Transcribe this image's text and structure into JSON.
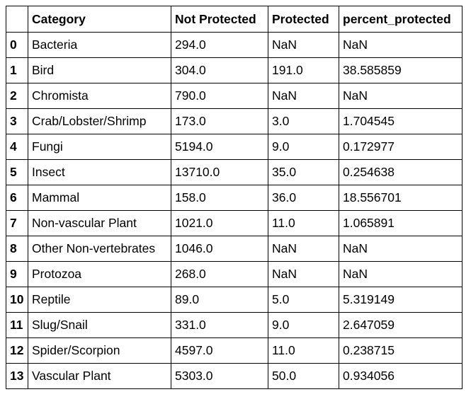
{
  "table": {
    "columns": [
      "",
      "Category",
      "Not Protected",
      "Protected",
      "percent_protected"
    ],
    "rows": [
      {
        "index": "0",
        "category": "Bacteria",
        "not_protected": "294.0",
        "protected": "NaN",
        "percent_protected": "NaN"
      },
      {
        "index": "1",
        "category": "Bird",
        "not_protected": "304.0",
        "protected": "191.0",
        "percent_protected": "38.585859"
      },
      {
        "index": "2",
        "category": "Chromista",
        "not_protected": "790.0",
        "protected": "NaN",
        "percent_protected": "NaN"
      },
      {
        "index": "3",
        "category": "Crab/Lobster/Shrimp",
        "not_protected": "173.0",
        "protected": "3.0",
        "percent_protected": "1.704545"
      },
      {
        "index": "4",
        "category": "Fungi",
        "not_protected": "5194.0",
        "protected": "9.0",
        "percent_protected": "0.172977"
      },
      {
        "index": "5",
        "category": "Insect",
        "not_protected": "13710.0",
        "protected": "35.0",
        "percent_protected": "0.254638"
      },
      {
        "index": "6",
        "category": "Mammal",
        "not_protected": "158.0",
        "protected": "36.0",
        "percent_protected": "18.556701"
      },
      {
        "index": "7",
        "category": "Non-vascular Plant",
        "not_protected": "1021.0",
        "protected": "11.0",
        "percent_protected": "1.065891"
      },
      {
        "index": "8",
        "category": "Other Non-vertebrates",
        "not_protected": "1046.0",
        "protected": "NaN",
        "percent_protected": "NaN"
      },
      {
        "index": "9",
        "category": "Protozoa",
        "not_protected": "268.0",
        "protected": "NaN",
        "percent_protected": "NaN"
      },
      {
        "index": "10",
        "category": "Reptile",
        "not_protected": "89.0",
        "protected": "5.0",
        "percent_protected": "5.319149"
      },
      {
        "index": "11",
        "category": "Slug/Snail",
        "not_protected": "331.0",
        "protected": "9.0",
        "percent_protected": "2.647059"
      },
      {
        "index": "12",
        "category": "Spider/Scorpion",
        "not_protected": "4597.0",
        "protected": "11.0",
        "percent_protected": "0.238715"
      },
      {
        "index": "13",
        "category": "Vascular Plant",
        "not_protected": "5303.0",
        "protected": "50.0",
        "percent_protected": "0.934056"
      }
    ]
  }
}
